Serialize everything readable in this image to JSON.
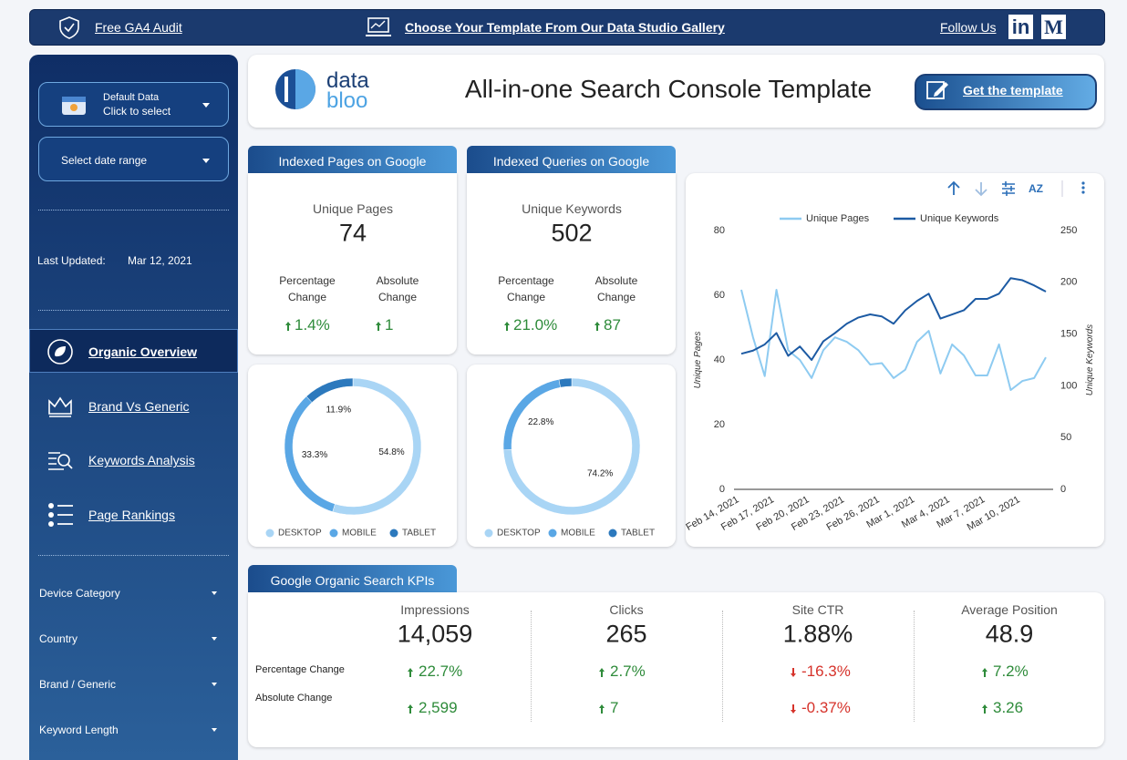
{
  "top_bar": {
    "audit_link": "Free GA4 Audit",
    "gallery_link": "Choose Your Template From Our Data Studio Gallery",
    "follow_label": "Follow Us",
    "linkedin": "in",
    "medium": "M"
  },
  "sidebar": {
    "data_selector": {
      "title": "Default Data",
      "hint": "Click to select"
    },
    "date_selector": "Select date range",
    "last_updated": {
      "label": "Last Updated:",
      "value": "Mar 12, 2021"
    },
    "nav": [
      "Organic Overview",
      "Brand Vs Generic",
      "Keywords Analysis",
      "Page Rankings"
    ],
    "active_nav": 0,
    "filters": [
      "Device Category",
      "Country",
      "Brand / Generic",
      "Keyword Length"
    ]
  },
  "header": {
    "logo": [
      "data",
      "bloo"
    ],
    "title": "All-in-one Search Console Template",
    "button": "Get the template"
  },
  "summary_cards": [
    {
      "tab": "Indexed Pages on Google",
      "metric": "Unique Pages",
      "value": "74",
      "trend": "up",
      "changes": [
        {
          "label": "Percentage Change",
          "value": "1.4%"
        },
        {
          "label": "Absolute Change",
          "value": "1"
        }
      ]
    },
    {
      "tab": "Indexed Queries on Google",
      "metric": "Unique Keywords",
      "value": "502",
      "trend": "up",
      "changes": [
        {
          "label": "Percentage Change",
          "value": "21.0%"
        },
        {
          "label": "Absolute Change",
          "value": "87"
        }
      ]
    }
  ],
  "chart_data": [
    {
      "type": "donut",
      "categories": [
        "DESKTOP",
        "MOBILE",
        "TABLET"
      ],
      "values": [
        54.8,
        33.3,
        11.9
      ],
      "value_labels": [
        "54.8%",
        "33.3%",
        "11.9%"
      ],
      "colors": [
        "#a9d5f5",
        "#5aa7e5",
        "#2c79bd"
      ],
      "legend": "bottom"
    },
    {
      "type": "donut",
      "categories": [
        "DESKTOP",
        "MOBILE",
        "TABLET"
      ],
      "values": [
        74.2,
        22.8,
        3.0
      ],
      "value_labels": [
        "74.2%",
        "22.8%",
        null
      ],
      "colors": [
        "#a9d5f5",
        "#5aa7e5",
        "#2c79bd"
      ],
      "legend": "bottom"
    },
    {
      "type": "line",
      "categories": [
        "Feb 14, 2021",
        null,
        null,
        "Feb 17, 2021",
        null,
        null,
        "Feb 20, 2021",
        null,
        null,
        "Feb 23, 2021",
        null,
        null,
        "Feb 26, 2021",
        null,
        null,
        "Mar 1, 2021",
        null,
        null,
        "Mar 4, 2021",
        null,
        null,
        "Mar 7, 2021",
        null,
        null,
        "Mar 10, 2021",
        null,
        null
      ],
      "series": [
        {
          "name": "Unique Pages",
          "color": "#8ecbf1",
          "values": [
            61.7,
            47,
            35,
            61.7,
            43,
            40,
            34.4,
            43,
            47,
            45.6,
            43,
            38.6,
            39,
            34.4,
            37,
            45.6,
            49,
            35.8,
            44.8,
            41.4,
            35.2,
            35.2,
            44.8,
            30.7,
            33.5,
            34.4,
            40.8
          ]
        },
        {
          "name": "Unique Keywords",
          "color": "#1c5aa3",
          "axis": "y2",
          "values": [
            131,
            134,
            140,
            151,
            129,
            138,
            125,
            143,
            151,
            160,
            166,
            169,
            167,
            160,
            173,
            182,
            189,
            165,
            169,
            173,
            184,
            184,
            189,
            204,
            202,
            197,
            191
          ]
        }
      ],
      "ylim": [
        0,
        80
      ],
      "yticks": [
        0,
        20,
        40,
        60,
        80
      ],
      "y2lim": [
        0,
        250
      ],
      "y2ticks": [
        0,
        50,
        100,
        150,
        200,
        250
      ],
      "ylabel": "Unique Pages",
      "y2label": "Unique Keywords",
      "legend": "top",
      "grid": false
    }
  ],
  "chart_toolbar": {
    "sort": "AZ"
  },
  "kpis": {
    "tab": "Google Organic Search KPIs",
    "row_labels": [
      "Percentage Change",
      "Absolute Change"
    ],
    "columns": [
      {
        "name": "Impressions",
        "value": "14,059",
        "trend": "up",
        "changes": [
          "22.7%",
          "2,599"
        ]
      },
      {
        "name": "Clicks",
        "value": "265",
        "trend": "up",
        "changes": [
          "2.7%",
          "7"
        ]
      },
      {
        "name": "Site CTR",
        "value": "1.88%",
        "trend": "down",
        "changes": [
          "-16.3%",
          "-0.37%"
        ]
      },
      {
        "name": "Average Position",
        "value": "48.9",
        "trend": "up",
        "changes": [
          "7.2%",
          "3.26"
        ]
      }
    ]
  }
}
